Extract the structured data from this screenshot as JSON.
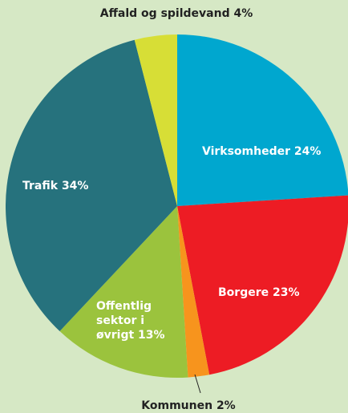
{
  "chart_data": {
    "type": "pie",
    "categories": [
      "Virksomheder",
      "Borgere",
      "Kommunen",
      "Offentlig sektor i øvrigt",
      "Trafik",
      "Affald og spildevand"
    ],
    "values": [
      24,
      23,
      2,
      13,
      34,
      4
    ],
    "value_labels": [
      "24%",
      "23%",
      "2%",
      "13%",
      "34%",
      "4%"
    ],
    "colors": [
      "#00a7cf",
      "#ed1c24",
      "#f7941d",
      "#9bc33d",
      "#26727d",
      "#d7de36"
    ]
  }
}
